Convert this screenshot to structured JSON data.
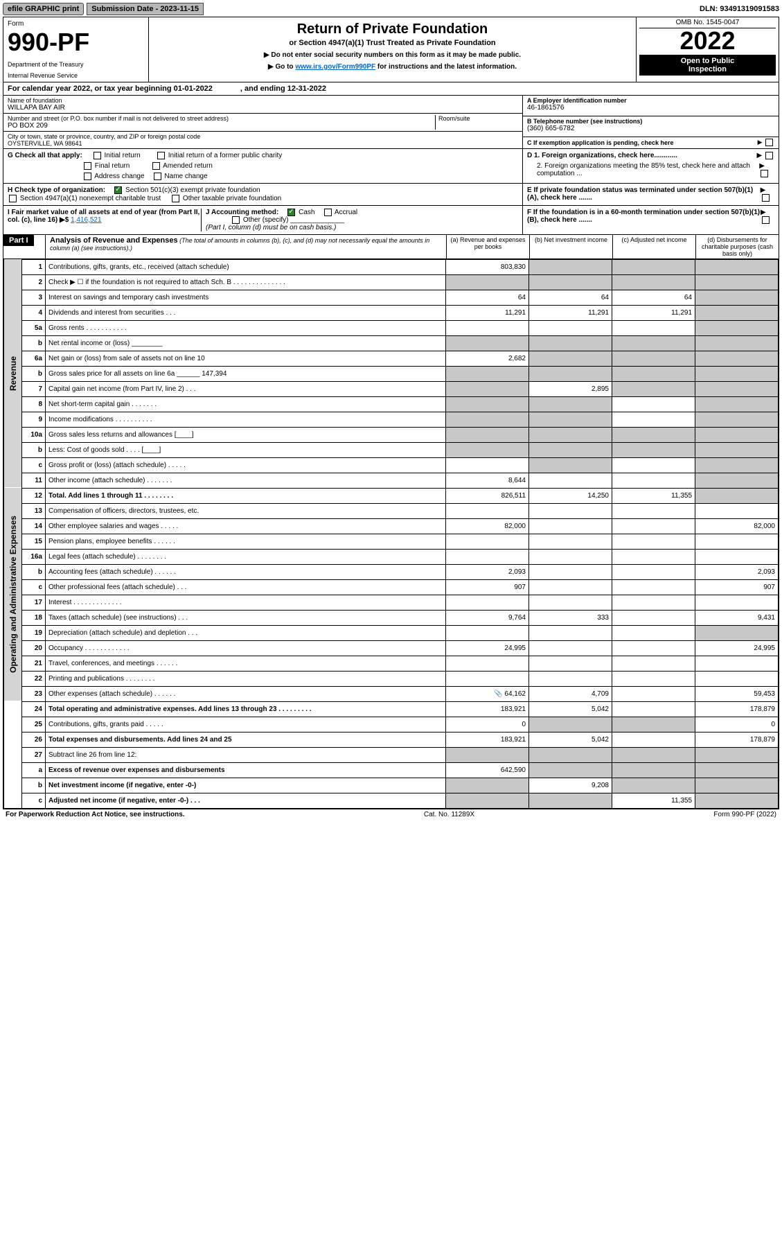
{
  "topbar": {
    "efile": "efile GRAPHIC print",
    "submission": "Submission Date - 2023-11-15",
    "dln": "DLN: 93491319091583"
  },
  "header": {
    "form_label": "Form",
    "form_number": "990-PF",
    "dept1": "Department of the Treasury",
    "dept2": "Internal Revenue Service",
    "title": "Return of Private Foundation",
    "subtitle": "or Section 4947(a)(1) Trust Treated as Private Foundation",
    "note1": "▶ Do not enter social security numbers on this form as it may be made public.",
    "note2_pre": "▶ Go to ",
    "note2_link": "www.irs.gov/Form990PF",
    "note2_post": " for instructions and the latest information.",
    "omb": "OMB No. 1545-0047",
    "year": "2022",
    "open1": "Open to Public",
    "open2": "Inspection"
  },
  "calyear": {
    "a": "For calendar year 2022, or tax year beginning 01-01-2022",
    "b": ", and ending 12-31-2022"
  },
  "entity": {
    "name_label": "Name of foundation",
    "name_val": "WILLAPA BAY AIR",
    "addr_label": "Number and street (or P.O. box number if mail is not delivered to street address)",
    "addr_val": "PO BOX 209",
    "room_label": "Room/suite",
    "city_label": "City or town, state or province, country, and ZIP or foreign postal code",
    "city_val": "OYSTERVILLE, WA  98641",
    "a_label": "A Employer identification number",
    "a_val": "46-1861576",
    "b_label": "B Telephone number (see instructions)",
    "b_val": "(360) 665-6782",
    "c_label": "C If exemption application is pending, check here"
  },
  "checks": {
    "g": "G Check all that apply:",
    "g1": "Initial return",
    "g1b": "Initial return of a former public charity",
    "g2": "Final return",
    "g2b": "Amended return",
    "g3": "Address change",
    "g3b": "Name change",
    "h": "H Check type of organization:",
    "h1": "Section 501(c)(3) exempt private foundation",
    "h2": "Section 4947(a)(1) nonexempt charitable trust",
    "h3": "Other taxable private foundation",
    "i": "I Fair market value of all assets at end of year (from Part II, col. (c), line 16) ▶$ ",
    "i_val": "1,416,521",
    "j": "J Accounting method:",
    "j1": "Cash",
    "j2": "Accrual",
    "j3": "Other (specify)",
    "j_note": "(Part I, column (d) must be on cash basis.)",
    "d1": "D 1. Foreign organizations, check here............",
    "d2": "2. Foreign organizations meeting the 85% test, check here and attach computation ...",
    "e": "E  If private foundation status was terminated under section 507(b)(1)(A), check here .......",
    "f": "F  If the foundation is in a 60-month termination under section 507(b)(1)(B), check here ......."
  },
  "part1": {
    "label": "Part I",
    "title": "Analysis of Revenue and Expenses",
    "note": " (The total of amounts in columns (b), (c), and (d) may not necessarily equal the amounts in column (a) (see instructions).)",
    "col_a": "(a)   Revenue and expenses per books",
    "col_b": "(b)   Net investment income",
    "col_c": "(c)   Adjusted net income",
    "col_d": "(d)   Disbursements for charitable purposes (cash basis only)"
  },
  "sides": {
    "rev": "Revenue",
    "exp": "Operating and Administrative Expenses"
  },
  "rows": [
    {
      "n": "1",
      "l": "Contributions, gifts, grants, etc., received (attach schedule)",
      "a": "803,830",
      "b": "shaded",
      "c": "shaded",
      "d": "shaded"
    },
    {
      "n": "2",
      "l": "Check ▶ ☐ if the foundation is not required to attach Sch. B   .  .  .  .  .  .  .  .  .  .  .  .  .  .",
      "a": "shaded",
      "b": "shaded",
      "c": "shaded",
      "d": "shaded"
    },
    {
      "n": "3",
      "l": "Interest on savings and temporary cash investments",
      "a": "64",
      "b": "64",
      "c": "64",
      "d": "shaded"
    },
    {
      "n": "4",
      "l": "Dividends and interest from securities    .   .   .",
      "a": "11,291",
      "b": "11,291",
      "c": "11,291",
      "d": "shaded"
    },
    {
      "n": "5a",
      "l": "Gross rents    .   .   .   .   .   .   .   .   .   .   .",
      "a": "",
      "b": "",
      "c": "",
      "d": "shaded"
    },
    {
      "n": "b",
      "l": "Net rental income or (loss)  ________",
      "a": "shaded",
      "b": "shaded",
      "c": "shaded",
      "d": "shaded"
    },
    {
      "n": "6a",
      "l": "Net gain or (loss) from sale of assets not on line 10",
      "a": "2,682",
      "b": "shaded",
      "c": "shaded",
      "d": "shaded"
    },
    {
      "n": "b",
      "l": "Gross sales price for all assets on line 6a ______ 147,394",
      "a": "shaded",
      "b": "shaded",
      "c": "shaded",
      "d": "shaded"
    },
    {
      "n": "7",
      "l": "Capital gain net income (from Part IV, line 2)   .   .   .",
      "a": "shaded",
      "b": "2,895",
      "c": "shaded",
      "d": "shaded"
    },
    {
      "n": "8",
      "l": "Net short-term capital gain   .   .   .   .   .   .   .",
      "a": "shaded",
      "b": "shaded",
      "c": "",
      "d": "shaded"
    },
    {
      "n": "9",
      "l": "Income modifications  .   .   .   .   .   .   .   .   .   .",
      "a": "shaded",
      "b": "shaded",
      "c": "",
      "d": "shaded"
    },
    {
      "n": "10a",
      "l": "Gross sales less returns and allowances  [____]",
      "a": "shaded",
      "b": "shaded",
      "c": "shaded",
      "d": "shaded"
    },
    {
      "n": "b",
      "l": "Less: Cost of goods sold    .   .   .   .   [____]",
      "a": "shaded",
      "b": "shaded",
      "c": "shaded",
      "d": "shaded"
    },
    {
      "n": "c",
      "l": "Gross profit or (loss) (attach schedule)    .   .   .   .   .",
      "a": "",
      "b": "shaded",
      "c": "",
      "d": "shaded"
    },
    {
      "n": "11",
      "l": "Other income (attach schedule)    .   .   .   .   .   .   .",
      "a": "8,644",
      "b": "",
      "c": "",
      "d": "shaded"
    },
    {
      "n": "12",
      "l": "Total. Add lines 1 through 11   .   .   .   .   .   .   .   .",
      "a": "826,511",
      "b": "14,250",
      "c": "11,355",
      "d": "shaded",
      "bold": true
    },
    {
      "n": "13",
      "l": "Compensation of officers, directors, trustees, etc.",
      "a": "",
      "b": "",
      "c": "",
      "d": ""
    },
    {
      "n": "14",
      "l": "Other employee salaries and wages   .   .   .   .   .",
      "a": "82,000",
      "b": "",
      "c": "",
      "d": "82,000"
    },
    {
      "n": "15",
      "l": "Pension plans, employee benefits  .   .   .   .   .   .",
      "a": "",
      "b": "",
      "c": "",
      "d": ""
    },
    {
      "n": "16a",
      "l": "Legal fees (attach schedule) .   .   .   .   .   .   .   .",
      "a": "",
      "b": "",
      "c": "",
      "d": ""
    },
    {
      "n": "b",
      "l": "Accounting fees (attach schedule) .   .   .   .   .   .",
      "a": "2,093",
      "b": "",
      "c": "",
      "d": "2,093"
    },
    {
      "n": "c",
      "l": "Other professional fees (attach schedule)    .   .   .",
      "a": "907",
      "b": "",
      "c": "",
      "d": "907"
    },
    {
      "n": "17",
      "l": "Interest  .   .   .   .   .   .   .   .   .   .   .   .   .",
      "a": "",
      "b": "",
      "c": "",
      "d": ""
    },
    {
      "n": "18",
      "l": "Taxes (attach schedule) (see instructions)    .   .   .",
      "a": "9,764",
      "b": "333",
      "c": "",
      "d": "9,431"
    },
    {
      "n": "19",
      "l": "Depreciation (attach schedule) and depletion   .   .   .",
      "a": "",
      "b": "",
      "c": "",
      "d": "shaded"
    },
    {
      "n": "20",
      "l": "Occupancy .   .   .   .   .   .   .   .   .   .   .   .",
      "a": "24,995",
      "b": "",
      "c": "",
      "d": "24,995"
    },
    {
      "n": "21",
      "l": "Travel, conferences, and meetings .   .   .   .   .   .",
      "a": "",
      "b": "",
      "c": "",
      "d": ""
    },
    {
      "n": "22",
      "l": "Printing and publications .   .   .   .   .   .   .   .",
      "a": "",
      "b": "",
      "c": "",
      "d": ""
    },
    {
      "n": "23",
      "l": "Other expenses (attach schedule) .   .   .   .   .   .",
      "a": "64,162",
      "a_icon": true,
      "b": "4,709",
      "c": "",
      "d": "59,453"
    },
    {
      "n": "24",
      "l": "Total operating and administrative expenses. Add lines 13 through 23   .   .   .   .   .   .   .   .   .",
      "a": "183,921",
      "b": "5,042",
      "c": "",
      "d": "178,879",
      "bold": true
    },
    {
      "n": "25",
      "l": "Contributions, gifts, grants paid    .   .   .   .   .",
      "a": "0",
      "b": "shaded",
      "c": "shaded",
      "d": "0"
    },
    {
      "n": "26",
      "l": "Total expenses and disbursements. Add lines 24 and 25",
      "a": "183,921",
      "b": "5,042",
      "c": "",
      "d": "178,879",
      "bold": true
    },
    {
      "n": "27",
      "l": "Subtract line 26 from line 12:",
      "a": "shaded",
      "b": "shaded",
      "c": "shaded",
      "d": "shaded"
    },
    {
      "n": "a",
      "l": "Excess of revenue over expenses and disbursements",
      "a": "642,590",
      "b": "shaded",
      "c": "shaded",
      "d": "shaded",
      "bold": true
    },
    {
      "n": "b",
      "l": "Net investment income (if negative, enter -0-)",
      "a": "shaded",
      "b": "9,208",
      "c": "shaded",
      "d": "shaded",
      "bold": true
    },
    {
      "n": "c",
      "l": "Adjusted net income (if negative, enter -0-)   .   .   .",
      "a": "shaded",
      "b": "shaded",
      "c": "11,355",
      "d": "shaded",
      "bold": true
    }
  ],
  "footer": {
    "left": "For Paperwork Reduction Act Notice, see instructions.",
    "mid": "Cat. No. 11289X",
    "right": "Form 990-PF (2022)"
  }
}
